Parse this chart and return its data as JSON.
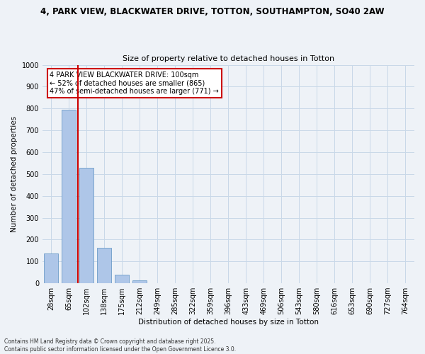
{
  "title_line1": "4, PARK VIEW, BLACKWATER DRIVE, TOTTON, SOUTHAMPTON, SO40 2AW",
  "title_line2": "Size of property relative to detached houses in Totton",
  "xlabel": "Distribution of detached houses by size in Totton",
  "ylabel": "Number of detached properties",
  "categories": [
    "28sqm",
    "65sqm",
    "102sqm",
    "138sqm",
    "175sqm",
    "212sqm",
    "249sqm",
    "285sqm",
    "322sqm",
    "359sqm",
    "396sqm",
    "433sqm",
    "469sqm",
    "506sqm",
    "543sqm",
    "580sqm",
    "616sqm",
    "653sqm",
    "690sqm",
    "727sqm",
    "764sqm"
  ],
  "values": [
    135,
    795,
    530,
    163,
    40,
    12,
    0,
    0,
    0,
    0,
    0,
    0,
    0,
    0,
    0,
    0,
    0,
    0,
    0,
    0,
    0
  ],
  "bar_color": "#aec6e8",
  "bar_edge_color": "#5a8fc0",
  "grid_color": "#c8d8e8",
  "background_color": "#eef2f7",
  "vline_color": "#cc0000",
  "vline_x_index": 2,
  "annotation_text": "4 PARK VIEW BLACKWATER DRIVE: 100sqm\n← 52% of detached houses are smaller (865)\n47% of semi-detached houses are larger (771) →",
  "annotation_box_color": "#ffffff",
  "annotation_box_edge": "#cc0000",
  "ylim": [
    0,
    1000
  ],
  "yticks": [
    0,
    100,
    200,
    300,
    400,
    500,
    600,
    700,
    800,
    900,
    1000
  ],
  "footer_line1": "Contains HM Land Registry data © Crown copyright and database right 2025.",
  "footer_line2": "Contains public sector information licensed under the Open Government Licence 3.0."
}
